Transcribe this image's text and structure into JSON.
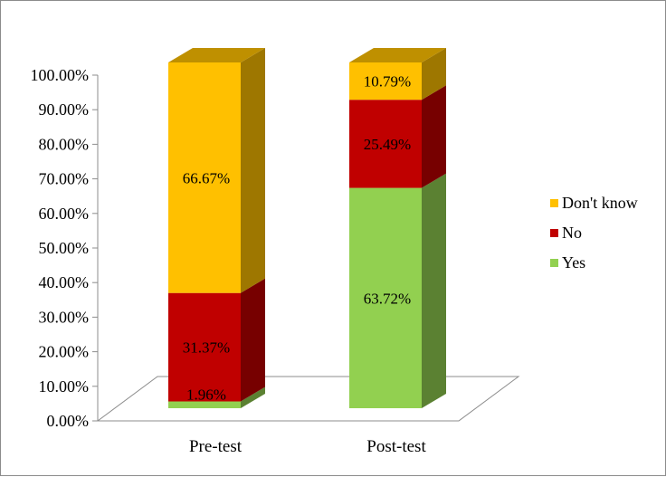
{
  "chart_data": {
    "type": "bar",
    "stacked": true,
    "three_d": true,
    "categories": [
      "Pre-test",
      "Post-test"
    ],
    "series": [
      {
        "name": "Yes",
        "color": "#92d050",
        "values": [
          1.96,
          63.72
        ],
        "labels": [
          "1.96%",
          "63.72%"
        ]
      },
      {
        "name": "No",
        "color": "#c00000",
        "values": [
          31.37,
          25.49
        ],
        "labels": [
          "31.37%",
          "25.49%"
        ]
      },
      {
        "name": "Don't know",
        "color": "#ffc000",
        "values": [
          66.67,
          10.79
        ],
        "labels": [
          "66.67%",
          "10.79%"
        ]
      }
    ],
    "ylim": [
      0,
      100
    ],
    "yticks": [
      "0.00%",
      "10.00%",
      "20.00%",
      "30.00%",
      "40.00%",
      "50.00%",
      "60.00%",
      "70.00%",
      "80.00%",
      "90.00%",
      "100.00%"
    ],
    "grid": false,
    "legend": {
      "position": "right",
      "order": [
        "Don't know",
        "No",
        "Yes"
      ]
    }
  }
}
